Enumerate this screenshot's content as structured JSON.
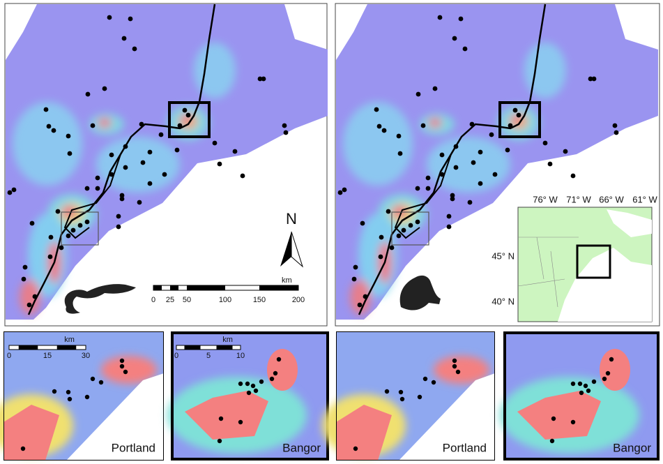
{
  "maps": [
    {
      "scale_bar": {
        "unit": "km",
        "labels": [
          "0",
          "25",
          "50",
          "100",
          "150",
          "200"
        ]
      },
      "north": "N"
    },
    {
      "inset": {
        "lon_labels": [
          "76° W",
          "71° W",
          "66° W",
          "61° W"
        ],
        "lat_labels": [
          "45° N",
          "40° N"
        ]
      }
    }
  ],
  "insets": [
    {
      "label": "Portland",
      "scale_bar": {
        "unit": "km",
        "labels": [
          "0",
          "15",
          "30"
        ]
      }
    },
    {
      "label": "Bangor",
      "scale_bar": {
        "unit": "km",
        "labels": [
          "0",
          "5",
          "10"
        ]
      }
    },
    {
      "label": "Portland"
    },
    {
      "label": "Bangor"
    }
  ]
}
